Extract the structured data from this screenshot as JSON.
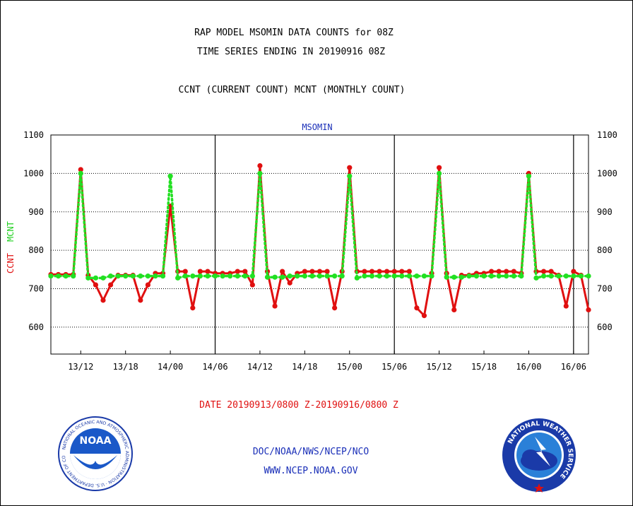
{
  "header": {
    "line1": "RAP MODEL MSOMIN DATA COUNTS for 08Z",
    "line2": "TIME SERIES ENDING IN 20190916 08Z",
    "line3": "CCNT (CURRENT COUNT) MCNT (MONTHLY COUNT)"
  },
  "chart_data": {
    "type": "line",
    "title": "MSOMIN",
    "ylabel_ccnt": "CCNT",
    "ylabel_mcnt": "MCNT",
    "xlabel": "DATE 20190913/0800 Z-20190916/0800 Z",
    "ylim": [
      530,
      1100
    ],
    "yticks": [
      600,
      700,
      800,
      900,
      1000,
      1100
    ],
    "xticks": [
      "13/12",
      "13/18",
      "14/00",
      "14/06",
      "14/12",
      "14/18",
      "15/00",
      "15/06",
      "15/12",
      "15/18",
      "16/00",
      "16/06"
    ],
    "xtick_hours": [
      4,
      10,
      16,
      22,
      28,
      34,
      40,
      46,
      52,
      58,
      64,
      70
    ],
    "day_boundaries_hours": [
      22,
      46,
      70
    ],
    "grid": "horizontal",
    "series": [
      {
        "name": "CCNT",
        "color": "#e01010",
        "x": [
          0,
          1,
          2,
          3,
          4,
          5,
          6,
          7,
          8,
          9,
          10,
          11,
          12,
          13,
          14,
          15,
          16,
          17,
          18,
          19,
          20,
          21,
          22,
          23,
          24,
          25,
          26,
          27,
          28,
          29,
          30,
          31,
          32,
          33,
          34,
          35,
          36,
          37,
          38,
          39,
          40,
          41,
          42,
          43,
          44,
          45,
          46,
          47,
          48,
          49,
          50,
          51,
          52,
          53,
          54,
          55,
          56,
          57,
          58,
          59,
          60,
          61,
          62,
          63,
          64,
          65,
          66,
          67,
          68,
          69,
          70,
          71,
          72
        ],
        "values": [
          737,
          737,
          737,
          737,
          1010,
          735,
          710,
          670,
          710,
          735,
          735,
          735,
          670,
          710,
          740,
          740,
          915,
          745,
          745,
          650,
          745,
          745,
          740,
          740,
          740,
          745,
          745,
          710,
          1020,
          745,
          655,
          745,
          715,
          740,
          745,
          745,
          745,
          745,
          650,
          745,
          1015,
          745,
          745,
          745,
          745,
          745,
          745,
          745,
          745,
          650,
          630,
          740,
          1015,
          740,
          645,
          735,
          735,
          740,
          740,
          745,
          745,
          745,
          745,
          740,
          1000,
          745,
          745,
          745,
          735,
          655,
          745,
          735,
          645
        ]
      },
      {
        "name": "MCNT",
        "color": "#22e022",
        "x": [
          0,
          1,
          2,
          3,
          4,
          5,
          6,
          7,
          8,
          9,
          10,
          11,
          12,
          13,
          14,
          15,
          16,
          17,
          18,
          19,
          20,
          21,
          22,
          23,
          24,
          25,
          26,
          27,
          28,
          29,
          30,
          31,
          32,
          33,
          34,
          35,
          36,
          37,
          38,
          39,
          40,
          41,
          42,
          43,
          44,
          45,
          46,
          47,
          48,
          49,
          50,
          51,
          52,
          53,
          54,
          55,
          56,
          57,
          58,
          59,
          60,
          61,
          62,
          63,
          64,
          65,
          66,
          67,
          68,
          69,
          70,
          71,
          72
        ],
        "values": [
          733,
          733,
          733,
          733,
          1000,
          728,
          728,
          728,
          733,
          733,
          733,
          733,
          733,
          733,
          733,
          733,
          993,
          728,
          733,
          733,
          733,
          733,
          733,
          733,
          733,
          733,
          733,
          733,
          1000,
          730,
          730,
          730,
          733,
          733,
          733,
          733,
          733,
          733,
          733,
          733,
          993,
          728,
          733,
          733,
          733,
          733,
          733,
          733,
          733,
          733,
          733,
          733,
          1000,
          730,
          730,
          730,
          733,
          733,
          733,
          733,
          733,
          733,
          733,
          733,
          993,
          728,
          733,
          733,
          733,
          733,
          733,
          733,
          733
        ]
      }
    ]
  },
  "footer": {
    "agency": "DOC/NOAA/NWS/NCEP/NCO",
    "url": "WWW.NCEP.NOAA.GOV",
    "noaa_logo_text": "NOAA",
    "noaa_ring_text": "NATIONAL OCEANIC AND ATMOSPHERIC ADMINISTRATION · U.S. DEPARTMENT OF COMMERCE",
    "nws_ring_text": "NATIONAL WEATHER SERVICE"
  }
}
